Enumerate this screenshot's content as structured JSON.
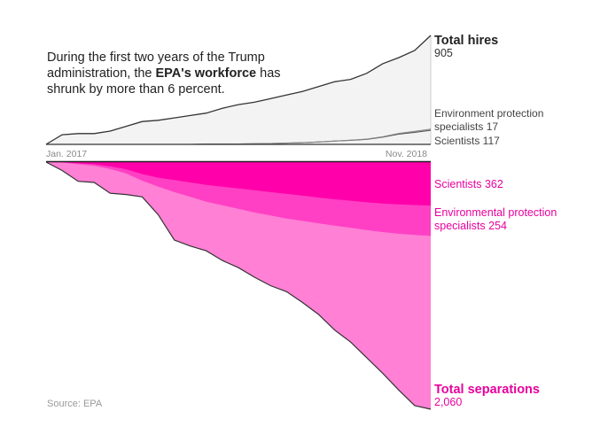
{
  "intro": {
    "pre": "During the first two years of the Trump administration, the ",
    "bold": "EPA's workforce",
    "post": " has shrunk by more than 6 percent."
  },
  "source": "Source: EPA",
  "colors": {
    "hires_fill": "#f3f3f3",
    "hires_line": "#333333",
    "sep_total": "#ff80d5",
    "sep_specialists": "#ff40c4",
    "sep_scientists": "#ff00aa",
    "sep_label": "#e8009e"
  },
  "chart_data": {
    "type": "area",
    "title": "During the first two years of the Trump administration, the EPA's workforce has shrunk by more than 6 percent.",
    "x_start_label": "Jan. 2017",
    "x_end_label": "Nov. 2018",
    "hires": {
      "series": [
        {
          "name": "Total hires",
          "final_value": 905,
          "values": [
            0,
            80,
            90,
            90,
            110,
            150,
            190,
            200,
            220,
            240,
            260,
            300,
            330,
            350,
            380,
            410,
            440,
            480,
            520,
            540,
            590,
            670,
            720,
            780,
            905
          ]
        },
        {
          "name": "Environment protection specialists",
          "final_value": 17,
          "values": [
            0,
            0,
            0,
            0,
            0,
            0,
            0,
            0,
            0,
            0,
            0,
            0,
            0,
            0,
            0,
            0,
            0,
            0,
            1,
            2,
            3,
            6,
            10,
            13,
            17
          ]
        },
        {
          "name": "Scientists",
          "final_value": 117,
          "values": [
            0,
            0,
            0,
            0,
            0,
            0,
            0,
            0,
            0,
            0,
            2,
            3,
            4,
            5,
            7,
            10,
            14,
            20,
            27,
            34,
            42,
            60,
            85,
            100,
            117
          ]
        }
      ],
      "labels": {
        "total_name": "Total hires",
        "total_value": "905",
        "specialists": "Environment protection specialists 17",
        "scientists": "Scientists 117"
      }
    },
    "separations": {
      "series": [
        {
          "name": "Total separations",
          "final_value": 2060,
          "values": [
            0,
            70,
            160,
            170,
            260,
            270,
            290,
            440,
            650,
            700,
            740,
            820,
            880,
            960,
            1030,
            1080,
            1170,
            1270,
            1400,
            1500,
            1630,
            1760,
            1900,
            2030,
            2060
          ]
        },
        {
          "name": "Environmental protection specialists",
          "final_value": 254,
          "values": [
            0,
            2,
            8,
            12,
            22,
            35,
            55,
            75,
            100,
            120,
            140,
            155,
            170,
            185,
            195,
            205,
            210,
            215,
            220,
            225,
            232,
            238,
            245,
            250,
            254
          ]
        },
        {
          "name": "Scientists",
          "final_value": 362,
          "values": [
            0,
            2,
            10,
            18,
            35,
            60,
            100,
            130,
            150,
            170,
            190,
            205,
            220,
            235,
            250,
            265,
            280,
            295,
            310,
            322,
            335,
            345,
            352,
            358,
            362
          ]
        }
      ],
      "labels": {
        "scientists": "Scientists 362",
        "specialists_line1": "Environmental protection",
        "specialists_line2": "specialists 254",
        "total_name": "Total separations",
        "total_value": "2,060"
      }
    }
  }
}
